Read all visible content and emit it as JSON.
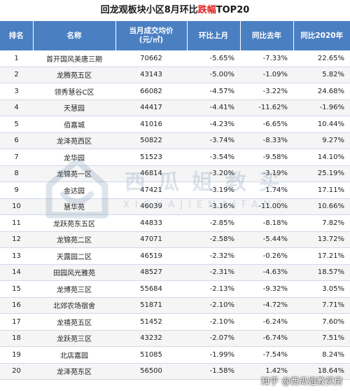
{
  "title": {
    "part1": "回龙观板块小区8月环比",
    "highlight": "跌幅",
    "part2": "TOP20"
  },
  "headers": {
    "rank": "排名",
    "name": "名称",
    "price_line1": "当月成交均价",
    "price_line2": "(元/㎡)",
    "mom": "环比上月",
    "yoy": "同比去年",
    "vs2020": "同比2020年"
  },
  "rows": [
    {
      "rank": "1",
      "name": "首开国风美唐三期",
      "price": "70662",
      "mom": "-5.65%",
      "yoy": "-7.33%",
      "vs2020": "22.65%"
    },
    {
      "rank": "2",
      "name": "龙腾苑五区",
      "price": "43143",
      "mom": "-5.00%",
      "yoy": "-1.09%",
      "vs2020": "5.82%"
    },
    {
      "rank": "3",
      "name": "领秀慧谷C区",
      "price": "66082",
      "mom": "-4.57%",
      "yoy": "-3.22%",
      "vs2020": "24.68%"
    },
    {
      "rank": "4",
      "name": "天慧园",
      "price": "44417",
      "mom": "-4.41%",
      "yoy": "-11.62%",
      "vs2020": "-1.96%"
    },
    {
      "rank": "5",
      "name": "佰嘉城",
      "price": "41016",
      "mom": "-4.23%",
      "yoy": "-6.65%",
      "vs2020": "10.44%"
    },
    {
      "rank": "6",
      "name": "龙泽苑西区",
      "price": "50822",
      "mom": "-3.74%",
      "yoy": "-8.33%",
      "vs2020": "9.27%"
    },
    {
      "rank": "7",
      "name": "龙华园",
      "price": "51523",
      "mom": "-3.54%",
      "yoy": "-9.58%",
      "vs2020": "14.10%"
    },
    {
      "rank": "8",
      "name": "龙锦苑一区",
      "price": "46814",
      "mom": "-3.20%",
      "yoy": "-3.19%",
      "vs2020": "25.19%"
    },
    {
      "rank": "9",
      "name": "金达园",
      "price": "47421",
      "mom": "-3.19%",
      "yoy": "1.74%",
      "vs2020": "17.11%"
    },
    {
      "rank": "10",
      "name": "慧华苑",
      "price": "46039",
      "mom": "-3.16%",
      "yoy": "-11.00%",
      "vs2020": "10.66%"
    },
    {
      "rank": "11",
      "name": "龙跃苑东五区",
      "price": "44833",
      "mom": "-2.85%",
      "yoy": "-8.18%",
      "vs2020": "7.82%"
    },
    {
      "rank": "12",
      "name": "龙锦苑二区",
      "price": "47071",
      "mom": "-2.58%",
      "yoy": "-5.44%",
      "vs2020": "13.72%"
    },
    {
      "rank": "13",
      "name": "天露园二区",
      "price": "46519",
      "mom": "-2.32%",
      "yoy": "-0.26%",
      "vs2020": "17.21%"
    },
    {
      "rank": "14",
      "name": "田园风光雅苑",
      "price": "48527",
      "mom": "-2.31%",
      "yoy": "-4.63%",
      "vs2020": "18.57%"
    },
    {
      "rank": "15",
      "name": "龙博苑三区",
      "price": "55684",
      "mom": "-2.13%",
      "yoy": "-9.32%",
      "vs2020": "3.05%"
    },
    {
      "rank": "16",
      "name": "北郊农场宿舍",
      "price": "51871",
      "mom": "-2.10%",
      "yoy": "-4.72%",
      "vs2020": "7.71%"
    },
    {
      "rank": "17",
      "name": "龙禧苑五区",
      "price": "51452",
      "mom": "-2.10%",
      "yoy": "-6.24%",
      "vs2020": "7.60%"
    },
    {
      "rank": "18",
      "name": "龙跃苑三区",
      "price": "43232",
      "mom": "-2.07%",
      "yoy": "-6.74%",
      "vs2020": "7.51%"
    },
    {
      "rank": "19",
      "name": "北店嘉园",
      "price": "51085",
      "mom": "-1.99%",
      "yoy": "-7.54%",
      "vs2020": "8.24%"
    },
    {
      "rank": "20",
      "name": "龙泽苑东区",
      "price": "56500",
      "mom": "-1.58%",
      "yoy": "1.42%",
      "vs2020": "18.64%"
    }
  ],
  "watermark": {
    "main": "西瓜姐教买",
    "sub": "XIGUAJIEMAIFANG"
  },
  "footer_mark": "知乎 @西瓜姐教买房",
  "colors": {
    "header_bg": "#4a7fc1",
    "title_highlight": "#e02020",
    "row_alt": "#f5f5f5"
  }
}
